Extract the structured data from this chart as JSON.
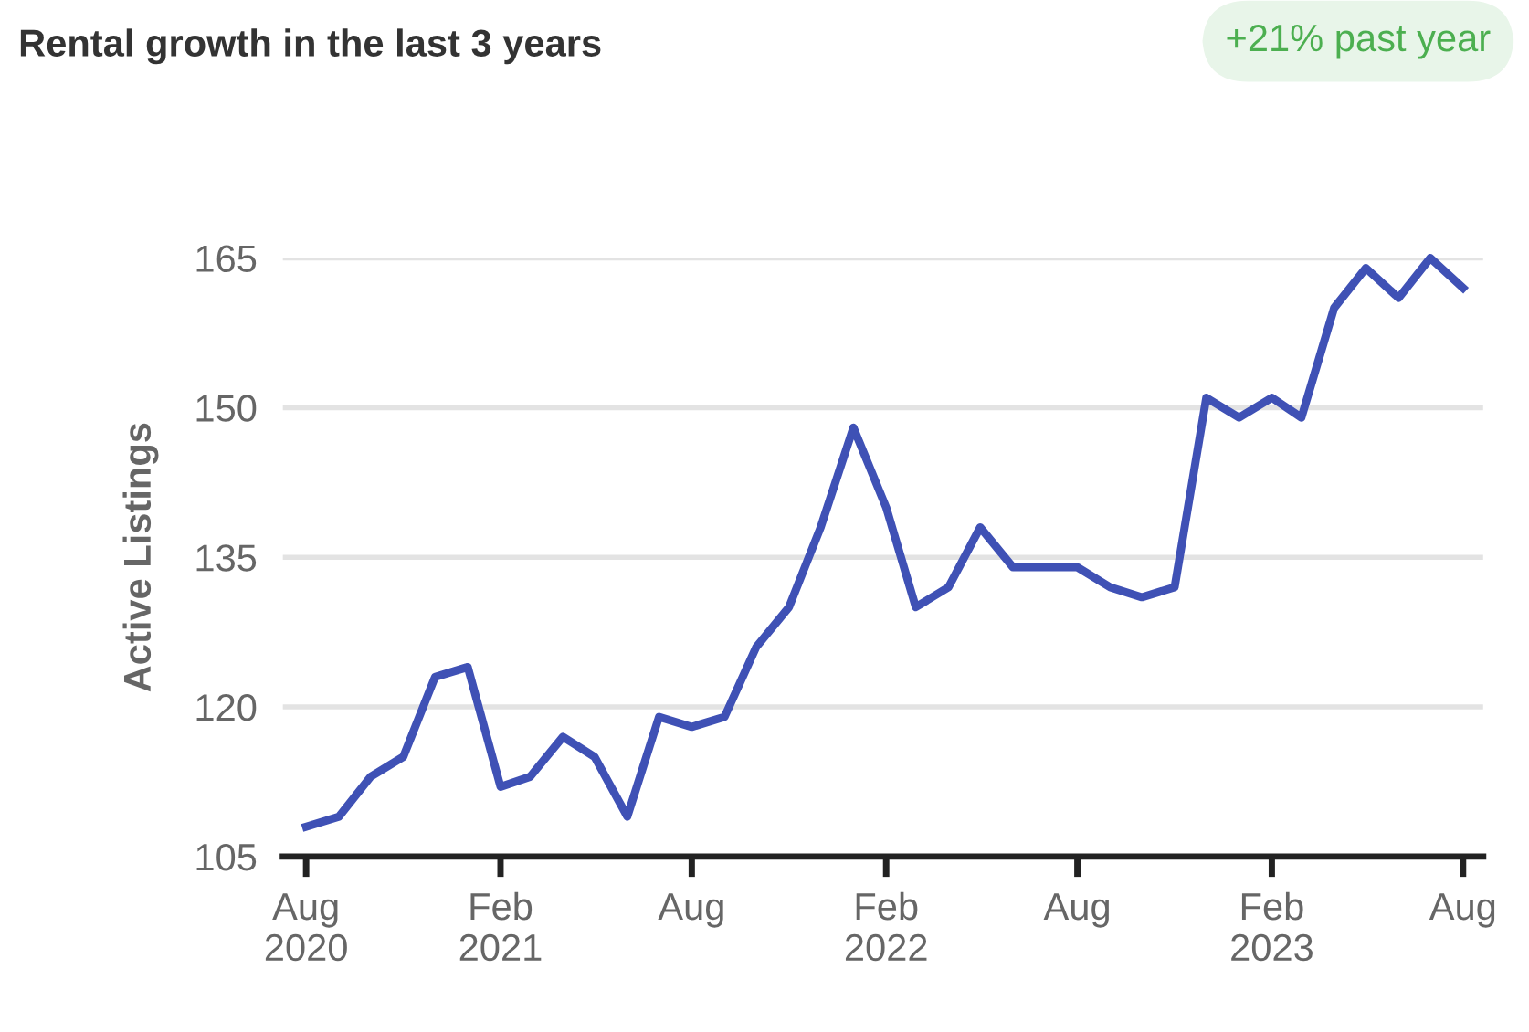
{
  "chart_data": {
    "type": "line",
    "title": "Rental growth in the last 3 years",
    "ylabel": "Active Listings",
    "annotations": [
      "+21% past year"
    ],
    "x": [
      "2020-08",
      "2020-09",
      "2020-10",
      "2020-11",
      "2020-12",
      "2021-01",
      "2021-02",
      "2021-03",
      "2021-04",
      "2021-05",
      "2021-06",
      "2021-07",
      "2021-08",
      "2021-09",
      "2021-10",
      "2021-11",
      "2021-12",
      "2022-01",
      "2022-02",
      "2022-03",
      "2022-04",
      "2022-05",
      "2022-06",
      "2022-07",
      "2022-08",
      "2022-09",
      "2022-10",
      "2022-11",
      "2022-12",
      "2023-01",
      "2023-02",
      "2023-03",
      "2023-04",
      "2023-05",
      "2023-06",
      "2023-07",
      "2023-08"
    ],
    "series": [
      {
        "color": "#3f51b5",
        "values": [
          108,
          109,
          113,
          115,
          123,
          124,
          112,
          113,
          117,
          115,
          109,
          119,
          118,
          119,
          126,
          130,
          138,
          148,
          140,
          130,
          132,
          138,
          134,
          134,
          134,
          132,
          131,
          132,
          151,
          149,
          151,
          149,
          160,
          164,
          161,
          165,
          162
        ]
      }
    ],
    "xlim": [
      "2020-07-10",
      "2023-08-20"
    ],
    "xticks": [
      {
        "value": "2020-08",
        "label": "Aug\n2020"
      },
      {
        "value": "2021-02",
        "label": "Feb\n2021"
      },
      {
        "value": "2021-08",
        "label": "Aug"
      },
      {
        "value": "2022-02",
        "label": "Feb\n2022"
      },
      {
        "value": "2022-08",
        "label": "Aug"
      },
      {
        "value": "2023-02",
        "label": "Feb\n2023"
      },
      {
        "value": "2023-08",
        "label": "Aug"
      }
    ],
    "ylim": [
      105,
      165
    ],
    "yticks": [
      105,
      120,
      135,
      150,
      165
    ],
    "grid": "y",
    "marker": "none",
    "line_style": "solid"
  }
}
